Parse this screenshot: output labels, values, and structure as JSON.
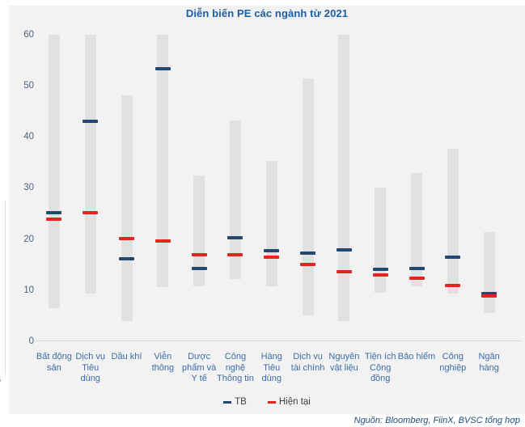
{
  "page": {
    "edge_fragment": "6"
  },
  "chart_data": {
    "type": "bar",
    "variant": "floating-range-bars-with-markers",
    "title": "Diễn biến PE các ngành từ 2021",
    "source": "Nguồn: Bloomberg, FiinX, BVSC tổng hợp",
    "categories": [
      "Bất động sản",
      "Dịch vụ Tiêu dùng",
      "Dầu khí",
      "Viễn thông",
      "Dược phẩm và Y tế",
      "Công nghệ Thông tin",
      "Hàng Tiêu dùng",
      "Dịch vụ tài chính",
      "Nguyên vật liệu",
      "Tiện ích Cộng đồng",
      "Bảo hiểm",
      "Công nghiệp",
      "Ngân hàng"
    ],
    "range_low": [
      6.5,
      9.3,
      4.0,
      10.6,
      10.7,
      12.2,
      10.7,
      5.1,
      4.0,
      9.5,
      10.7,
      9.3,
      5.5
    ],
    "range_high": [
      60,
      60,
      48.2,
      60,
      32.5,
      43.2,
      35.3,
      51.4,
      60,
      30.0,
      32.9,
      37.6,
      21.3
    ],
    "series": [
      {
        "name": "TB",
        "values": [
          25.2,
          43.0,
          16.1,
          53.3,
          14.3,
          20.2,
          17.7,
          17.3,
          17.9,
          14.1,
          14.3,
          16.5,
          9.4
        ],
        "color": "#24476C"
      },
      {
        "name": "Hiện tại",
        "values": [
          23.9,
          25.2,
          20.1,
          19.6,
          16.9,
          16.9,
          16.4,
          15.0,
          13.6,
          13.0,
          12.3,
          10.9,
          8.9
        ],
        "color": "#E1251F"
      }
    ],
    "ylim": [
      0,
      60
    ],
    "yticks": [
      0,
      10,
      20,
      30,
      40,
      50,
      60
    ],
    "grid": false,
    "legend_position": "bottom",
    "colors": {
      "panel": "#F2F2F2",
      "bar": "#E1E1E1",
      "title": "#1B5EA6",
      "category_label": "#3A6CA8",
      "tick_label": "#4A627F",
      "axis_line": "#D9D9D9",
      "legend_text": "#3F3F3F",
      "source_text": "#1F4E79"
    }
  }
}
